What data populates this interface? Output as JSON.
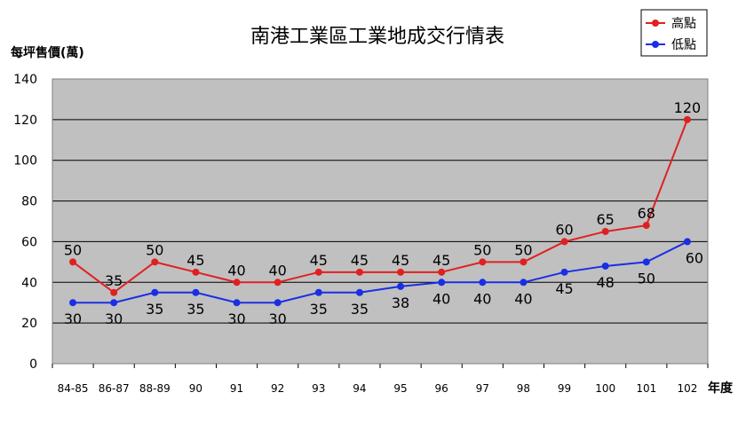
{
  "chart_data": {
    "type": "line",
    "title": "南港工業區工業地成交行情表",
    "ylabel": "每坪售價(萬)",
    "xlabel": "年度",
    "ylim": [
      0,
      140
    ],
    "yticks": [
      0,
      20,
      40,
      60,
      80,
      100,
      120,
      140
    ],
    "grid": true,
    "legend_position": "top-right",
    "categories": [
      "84-85",
      "86-87",
      "88-89",
      "90",
      "91",
      "92",
      "93",
      "94",
      "95",
      "96",
      "97",
      "98",
      "99",
      "100",
      "101",
      "102"
    ],
    "series": [
      {
        "name": "高點",
        "color": "#e02020",
        "values": [
          50,
          35,
          50,
          45,
          40,
          40,
          45,
          45,
          45,
          45,
          50,
          50,
          60,
          65,
          68,
          120
        ]
      },
      {
        "name": "低點",
        "color": "#1a2ee6",
        "values": [
          30,
          30,
          35,
          35,
          30,
          30,
          35,
          35,
          38,
          40,
          40,
          40,
          45,
          48,
          50,
          60
        ]
      }
    ],
    "plot_background": "#c0c0c0"
  }
}
